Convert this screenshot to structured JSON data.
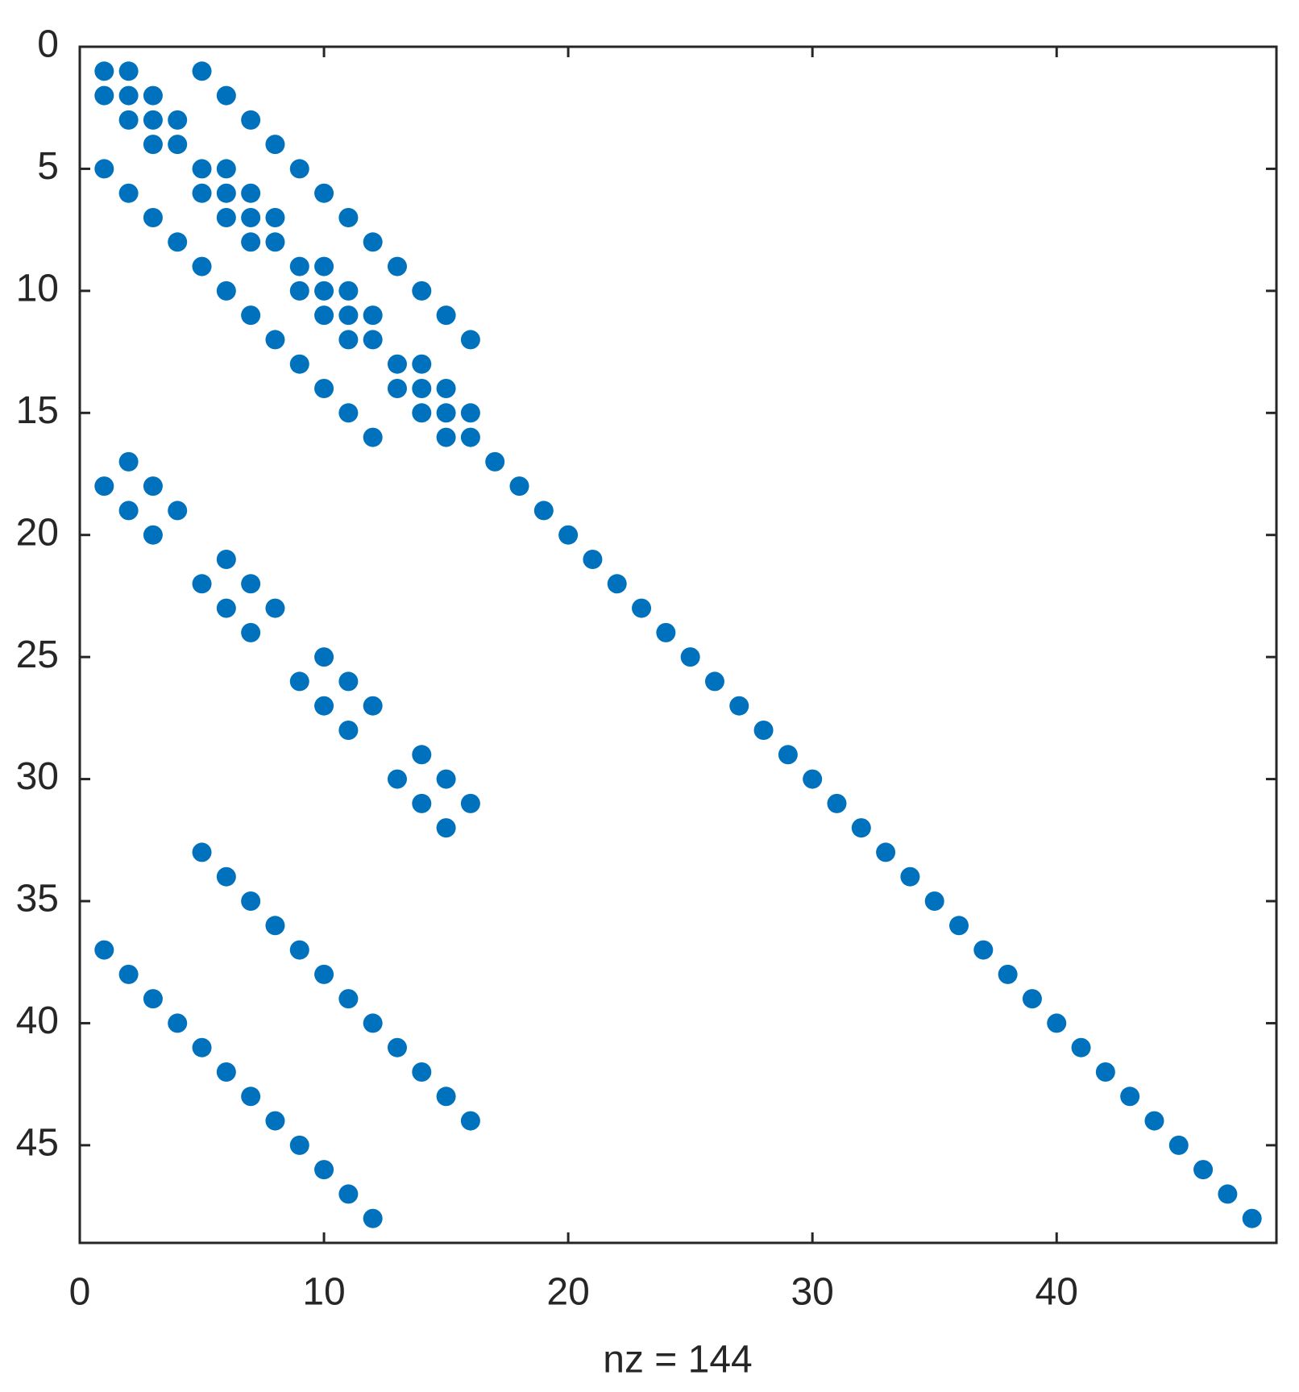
{
  "chart_data": {
    "type": "scatter",
    "xlabel": "nz = 144",
    "x": [
      1,
      2,
      5,
      1,
      2,
      3,
      6,
      2,
      3,
      4,
      7,
      3,
      4,
      8,
      1,
      5,
      6,
      9,
      2,
      5,
      6,
      7,
      10,
      3,
      6,
      7,
      8,
      11,
      4,
      7,
      8,
      12,
      5,
      9,
      10,
      13,
      6,
      9,
      10,
      11,
      14,
      7,
      10,
      11,
      12,
      15,
      8,
      11,
      12,
      16,
      9,
      13,
      14,
      10,
      13,
      14,
      15,
      11,
      14,
      15,
      16,
      12,
      15,
      16,
      2,
      17,
      1,
      3,
      18,
      2,
      4,
      19,
      3,
      20,
      6,
      21,
      5,
      7,
      22,
      6,
      8,
      23,
      7,
      24,
      10,
      25,
      9,
      11,
      26,
      10,
      12,
      27,
      11,
      28,
      14,
      29,
      13,
      15,
      30,
      14,
      16,
      31,
      15,
      32,
      5,
      33,
      6,
      34,
      7,
      35,
      8,
      36,
      1,
      9,
      37,
      2,
      10,
      38,
      3,
      11,
      39,
      4,
      12,
      40,
      5,
      13,
      41,
      6,
      14,
      42,
      7,
      15,
      43,
      8,
      16,
      44,
      9,
      45,
      10,
      46,
      11,
      47,
      12,
      48
    ],
    "series": [
      {
        "color": "#0072bd",
        "values": [
          1,
          1,
          1,
          2,
          2,
          2,
          2,
          3,
          3,
          3,
          3,
          4,
          4,
          4,
          5,
          5,
          5,
          5,
          6,
          6,
          6,
          6,
          6,
          7,
          7,
          7,
          7,
          7,
          8,
          8,
          8,
          8,
          9,
          9,
          9,
          9,
          10,
          10,
          10,
          10,
          10,
          11,
          11,
          11,
          11,
          11,
          12,
          12,
          12,
          12,
          13,
          13,
          13,
          14,
          14,
          14,
          14,
          15,
          15,
          15,
          15,
          16,
          16,
          16,
          17,
          17,
          18,
          18,
          18,
          19,
          19,
          19,
          20,
          20,
          21,
          21,
          22,
          22,
          22,
          23,
          23,
          23,
          24,
          24,
          25,
          25,
          26,
          26,
          26,
          27,
          27,
          27,
          28,
          28,
          29,
          29,
          30,
          30,
          30,
          31,
          31,
          31,
          32,
          32,
          33,
          33,
          34,
          34,
          35,
          35,
          36,
          36,
          37,
          37,
          37,
          38,
          38,
          38,
          39,
          39,
          39,
          40,
          40,
          40,
          41,
          41,
          41,
          42,
          42,
          42,
          43,
          43,
          43,
          44,
          44,
          44,
          45,
          45,
          46,
          46,
          47,
          47,
          48,
          48
        ]
      }
    ],
    "xlim": [
      0,
      49
    ],
    "ylim": [
      0,
      49
    ],
    "y_direction": "reverse",
    "xticks": [
      0,
      10,
      20,
      30,
      40
    ],
    "yticks": [
      0,
      5,
      10,
      15,
      20,
      25,
      30,
      35,
      40,
      45
    ]
  }
}
